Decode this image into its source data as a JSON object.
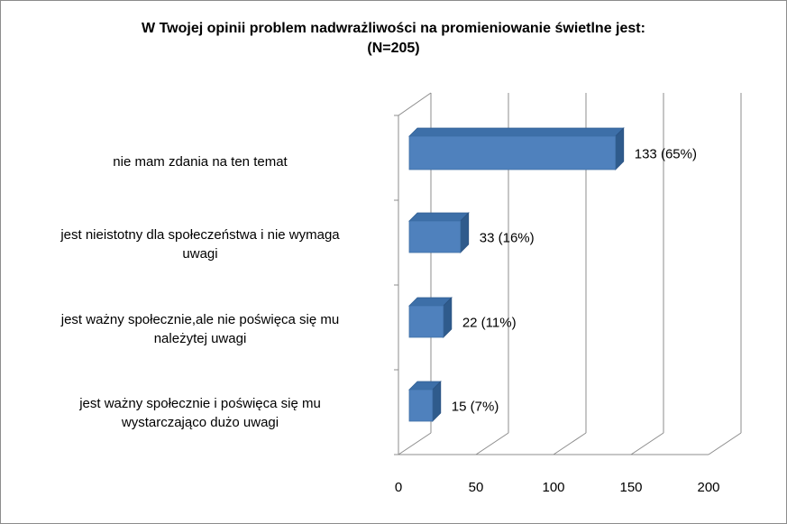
{
  "chart_data": {
    "type": "bar",
    "orientation": "horizontal",
    "title": "W Twojej opinii problem nadwrażliwości na promieniowanie świetlne jest:",
    "subtitle": "(N=205)",
    "categories": [
      "nie mam zdania na ten temat",
      "jest nieistotny dla społeczeństwa i nie wymaga uwagi",
      "jest ważny społecznie,ale nie poświęca się mu należytej uwagi",
      "jest ważny społecznie i poświęca się mu wystarczająco dużo uwagi"
    ],
    "values": [
      133,
      33,
      22,
      15
    ],
    "data_labels": [
      "133 (65%)",
      "33 (16%)",
      "22 (11%)",
      "15 (7%)"
    ],
    "xlim": [
      0,
      200
    ],
    "x_ticks": [
      "0",
      "50",
      "100",
      "150",
      "200"
    ],
    "grid": true,
    "legend": "none",
    "style": "3d",
    "bar_color": "#4f81bd"
  },
  "labels": {
    "cat0_line1": "nie mam zdania na ten temat",
    "cat1_line1": "jest nieistotny dla społeczeństwa i nie wymaga",
    "cat1_line2": "uwagi",
    "cat2_line1": "jest ważny społecznie,ale nie poświęca się mu",
    "cat2_line2": "należytej uwagi",
    "cat3_line1": "jest ważny społecznie i poświęca się mu",
    "cat3_line2": "wystarczająco dużo uwagi"
  }
}
